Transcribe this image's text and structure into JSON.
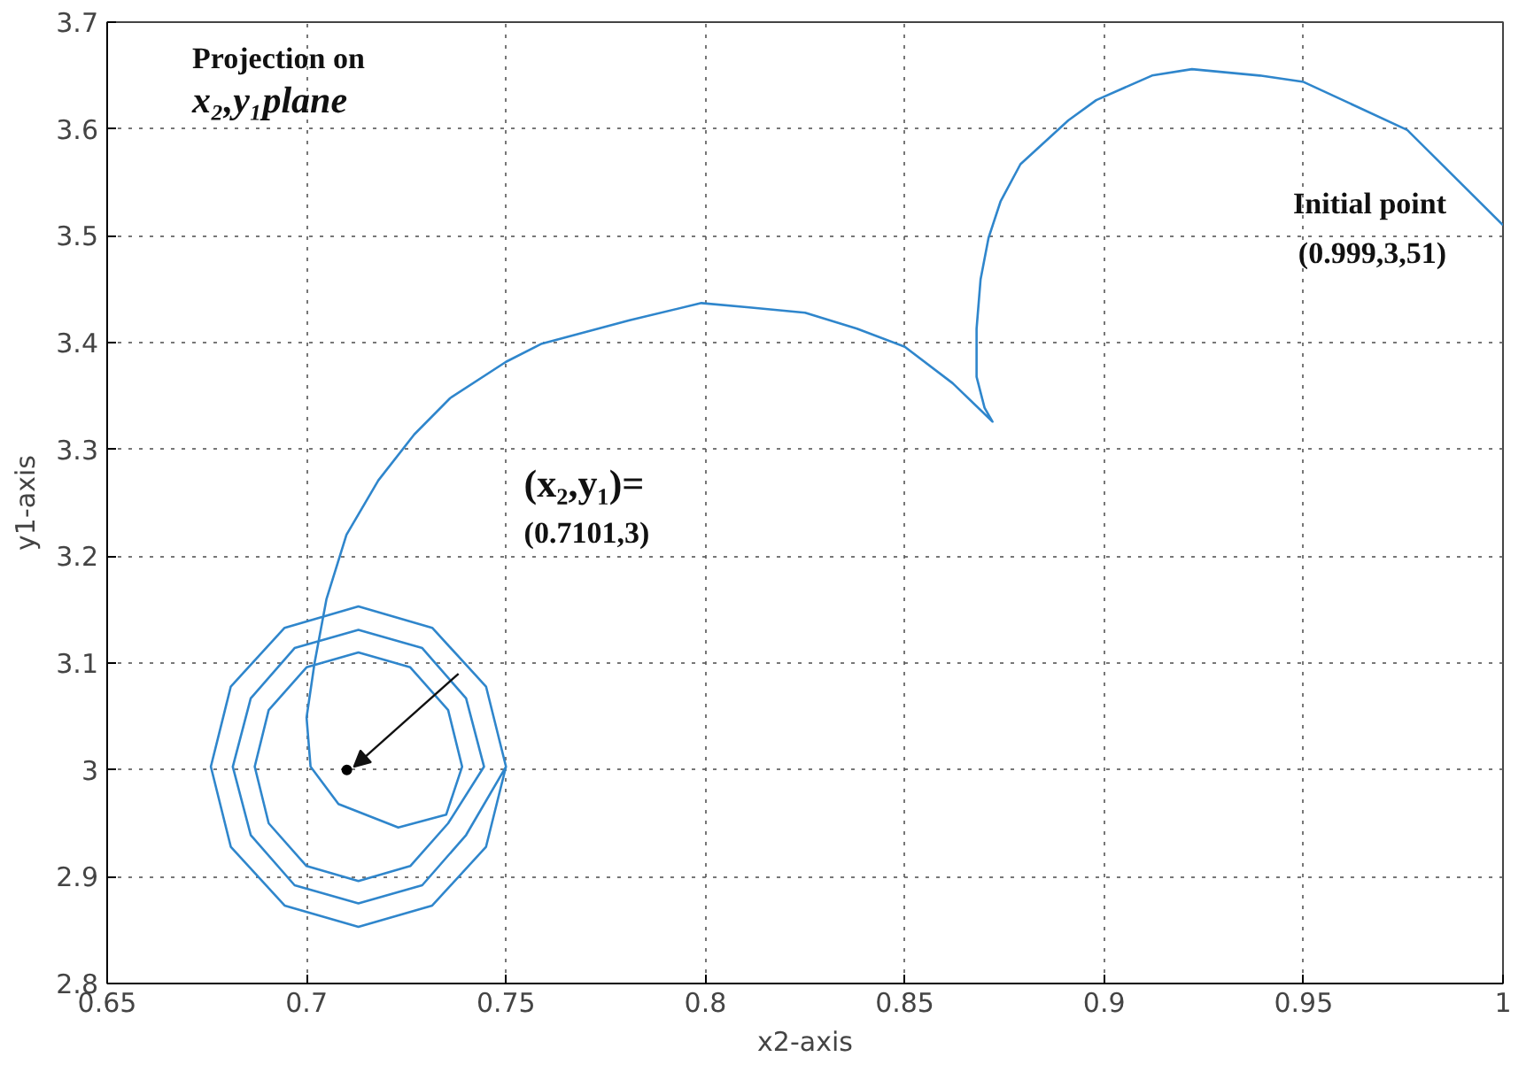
{
  "chart_data": {
    "type": "line",
    "title": "Projection on\nx₂,y₁plane",
    "xlabel": "x2-axis",
    "ylabel": "y1-axis",
    "xlim": [
      0.65,
      1
    ],
    "ylim": [
      2.8,
      3.7
    ],
    "xticks": [
      0.65,
      0.7,
      0.75,
      0.8,
      0.85,
      0.9,
      0.95,
      1
    ],
    "yticks": [
      2.8,
      2.9,
      3,
      3.1,
      3.2,
      3.3,
      3.4,
      3.5,
      3.6,
      3.7
    ],
    "grid": true,
    "line_style": "solid",
    "series": [
      {
        "color": "#2f86cc",
        "x": [
          1.0,
          0.976,
          0.95,
          0.939,
          0.922,
          0.912,
          0.898,
          0.891,
          0.879,
          0.874,
          0.871,
          0.869,
          0.868,
          0.868,
          0.87,
          0.872,
          0.862,
          0.85,
          0.838,
          0.825,
          0.811,
          0.799,
          0.781,
          0.759,
          0.75,
          0.736,
          0.727,
          0.718,
          0.71,
          0.705,
          0.702,
          0.7,
          0.701,
          0.708,
          0.723,
          0.735,
          0.739,
          0.7355,
          0.726,
          0.713,
          0.7,
          0.6905,
          0.687,
          0.6905,
          0.7,
          0.713,
          0.726,
          0.7355,
          0.7445,
          0.74,
          0.729,
          0.713,
          0.697,
          0.686,
          0.6815,
          0.686,
          0.697,
          0.713,
          0.729,
          0.74,
          0.75,
          0.745,
          0.7315,
          0.713,
          0.6945,
          0.681,
          0.676,
          0.681,
          0.6945,
          0.713,
          0.7315,
          0.745,
          0.75
        ],
        "values": [
          3.51,
          3.599,
          3.644,
          3.65,
          3.656,
          3.65,
          3.627,
          3.608,
          3.567,
          3.532,
          3.498,
          3.459,
          3.413,
          3.368,
          3.339,
          3.326,
          3.362,
          3.396,
          3.413,
          3.428,
          3.433,
          3.437,
          3.421,
          3.399,
          3.382,
          3.348,
          3.314,
          3.271,
          3.22,
          3.16,
          3.1,
          3.049,
          3.003,
          2.968,
          2.946,
          2.958,
          3.003,
          3.056,
          3.096,
          3.11,
          3.096,
          3.056,
          3.003,
          2.95,
          2.91,
          2.896,
          2.91,
          2.95,
          3.003,
          3.067,
          3.114,
          3.131,
          3.114,
          3.067,
          3.003,
          2.939,
          2.892,
          2.875,
          2.892,
          2.939,
          3.003,
          3.078,
          3.133,
          3.153,
          3.133,
          3.078,
          3.003,
          2.928,
          2.873,
          2.853,
          2.873,
          2.928,
          3.003
        ]
      },
      {
        "type": "scatter",
        "color": "#000000",
        "x": [
          0.7101
        ],
        "values": [
          3
        ]
      }
    ],
    "annotations": [
      "(x₂,y₁)=\n(0.7101,3)",
      {
        "text": "Initial point\n(0.999,3,51)",
        "x": 1.0,
        "y": 3.51
      }
    ]
  }
}
